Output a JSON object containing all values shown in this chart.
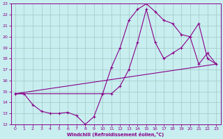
{
  "xlabel": "Windchill (Refroidissement éolien,°C)",
  "xlim": [
    -0.5,
    23.5
  ],
  "ylim": [
    12,
    23
  ],
  "xticks": [
    0,
    1,
    2,
    3,
    4,
    5,
    6,
    7,
    8,
    9,
    10,
    11,
    12,
    13,
    14,
    15,
    16,
    17,
    18,
    19,
    20,
    21,
    22,
    23
  ],
  "yticks": [
    12,
    13,
    14,
    15,
    16,
    17,
    18,
    19,
    20,
    21,
    22,
    23
  ],
  "bg_color": "#c8eef0",
  "line_color": "#880088",
  "grid_color": "#a0c8c0",
  "line1_x": [
    0,
    1,
    2,
    3,
    4,
    5,
    6,
    7,
    8,
    9,
    10,
    11,
    12,
    13,
    14,
    15,
    16,
    17,
    18,
    19,
    20,
    21,
    22,
    23
  ],
  "line1_y": [
    14.8,
    14.8,
    13.8,
    13.2,
    13.0,
    13.0,
    13.1,
    12.8,
    12.0,
    12.7,
    14.8,
    17.2,
    19.0,
    21.5,
    22.5,
    23.0,
    22.3,
    21.5,
    21.2,
    20.2,
    20.0,
    21.2,
    18.0,
    17.5
  ],
  "line2_x": [
    0,
    10,
    11,
    12,
    13,
    14,
    15,
    16,
    17,
    18,
    19,
    20,
    21,
    22,
    23
  ],
  "line2_y": [
    14.8,
    14.8,
    14.8,
    15.5,
    17.0,
    19.5,
    22.5,
    19.5,
    18.0,
    18.5,
    19.0,
    20.0,
    17.5,
    18.5,
    17.5
  ],
  "line3_x": [
    0,
    23
  ],
  "line3_y": [
    14.8,
    17.5
  ]
}
